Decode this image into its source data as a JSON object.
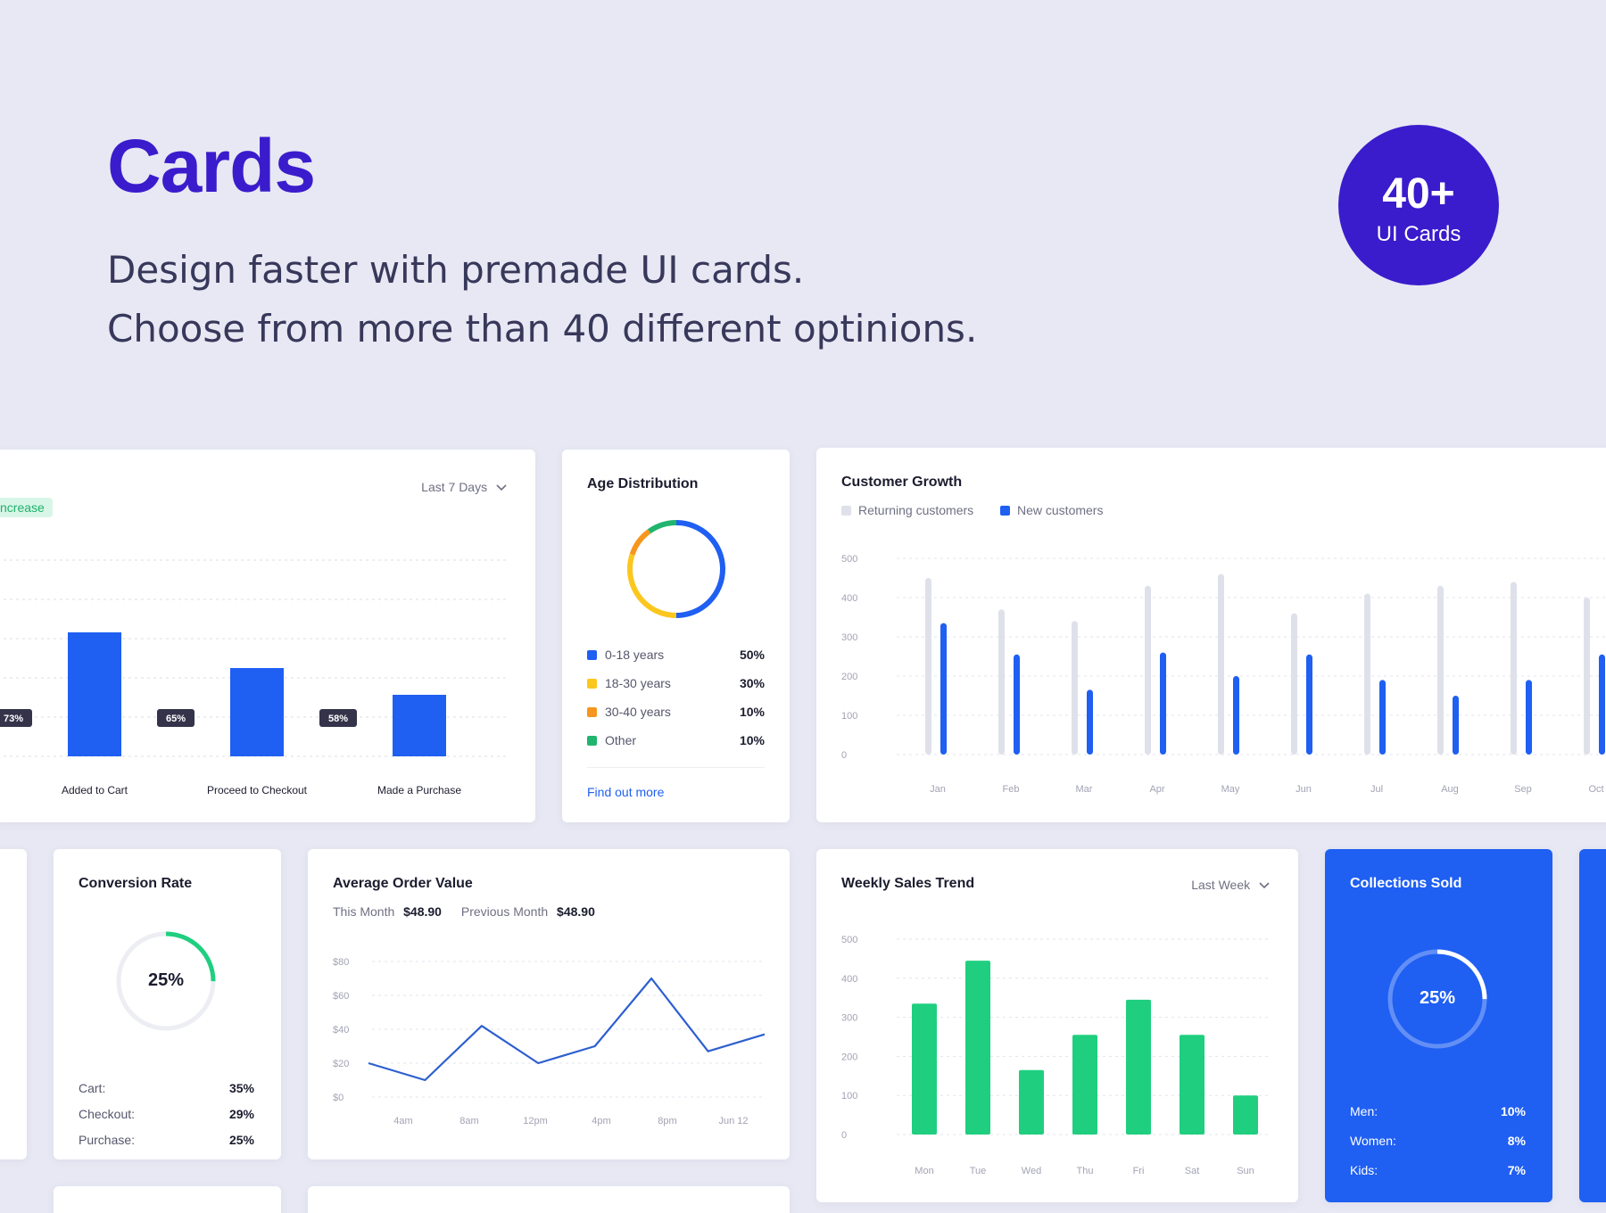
{
  "hero": {
    "title": "Cards",
    "line1": "Design faster with premade UI cards.",
    "line2": "Choose from more than 40 different optinions.",
    "badge_count": "40+",
    "badge_label": "UI Cards"
  },
  "colors": {
    "brand": "#3a1ccc",
    "blue": "#1f5ff2",
    "green": "#1fcf7f",
    "yellow": "#fcc71d",
    "orange": "#f6961e",
    "teal": "#20b56e",
    "grey_bar": "#dfe1ea",
    "line_blue": "#2d5fcf"
  },
  "funnel": {
    "badge": "ncrease",
    "dropdown": "Last 7 Days",
    "bars": [
      {
        "label": "Added to Cart",
        "value": 73
      },
      {
        "label": "Proceed to Checkout",
        "value": 65
      },
      {
        "label": "Made a Purchase",
        "value": 58
      }
    ],
    "rates": [
      "73%",
      "65%",
      "58%"
    ]
  },
  "age": {
    "title": "Age Distribution",
    "items": [
      {
        "label": "0-18 years",
        "value": "50%",
        "pct": 50,
        "color": "#1f5ff2"
      },
      {
        "label": "18-30 years",
        "value": "30%",
        "pct": 30,
        "color": "#fcc71d"
      },
      {
        "label": "30-40 years",
        "value": "10%",
        "pct": 10,
        "color": "#f6961e"
      },
      {
        "label": "Other",
        "value": "10%",
        "pct": 10,
        "color": "#20b56e"
      }
    ],
    "link": "Find out more"
  },
  "growth": {
    "title": "Customer Growth",
    "legend_returning": "Returning customers",
    "legend_new": "New customers",
    "chart_data": {
      "type": "bar",
      "categories": [
        "Jan",
        "Feb",
        "Mar",
        "Apr",
        "May",
        "Jun",
        "Jul",
        "Aug",
        "Sep",
        "Oct"
      ],
      "ylim": [
        0,
        500
      ],
      "yticks": [
        "500",
        "400",
        "300",
        "200",
        "100",
        "0"
      ],
      "series": [
        {
          "name": "Returning customers",
          "values": [
            450,
            370,
            340,
            430,
            460,
            360,
            410,
            430,
            440,
            400
          ]
        },
        {
          "name": "New customers",
          "values": [
            335,
            255,
            165,
            260,
            200,
            255,
            190,
            150,
            190,
            255
          ]
        }
      ]
    }
  },
  "conversion": {
    "title": "Conversion Rate",
    "center": "25%",
    "pct": 25,
    "rows": [
      {
        "label": "Cart:",
        "value": "35%"
      },
      {
        "label": "Checkout:",
        "value": "29%"
      },
      {
        "label": "Purchase:",
        "value": "25%"
      }
    ]
  },
  "aov": {
    "title": "Average Order Value",
    "this_label": "This Month",
    "this_value": "$48.90",
    "prev_label": "Previous Month",
    "prev_value": "$48.90",
    "chart_data": {
      "type": "line",
      "yticks": [
        "$80",
        "$60",
        "$40",
        "$20",
        "$0"
      ],
      "ylim": [
        0,
        80
      ],
      "xticks": [
        "4am",
        "8am",
        "12pm",
        "4pm",
        "8pm",
        "Jun 12"
      ],
      "values": [
        20,
        10,
        42,
        20,
        30,
        70,
        27,
        37
      ]
    }
  },
  "weekly": {
    "title": "Weekly Sales Trend",
    "dropdown": "Last Week",
    "chart_data": {
      "type": "bar",
      "categories": [
        "Mon",
        "Tue",
        "Wed",
        "Thu",
        "Fri",
        "Sat",
        "Sun"
      ],
      "ylim": [
        0,
        500
      ],
      "yticks": [
        "500",
        "400",
        "300",
        "200",
        "100",
        "0"
      ],
      "values": [
        335,
        445,
        165,
        255,
        345,
        255,
        100
      ]
    }
  },
  "collections": {
    "title": "Collections Sold",
    "center": "25%",
    "pct": 25,
    "rows": [
      {
        "label": "Men:",
        "value": "10%"
      },
      {
        "label": "Women:",
        "value": "8%"
      },
      {
        "label": "Kids:",
        "value": "7%"
      }
    ]
  }
}
